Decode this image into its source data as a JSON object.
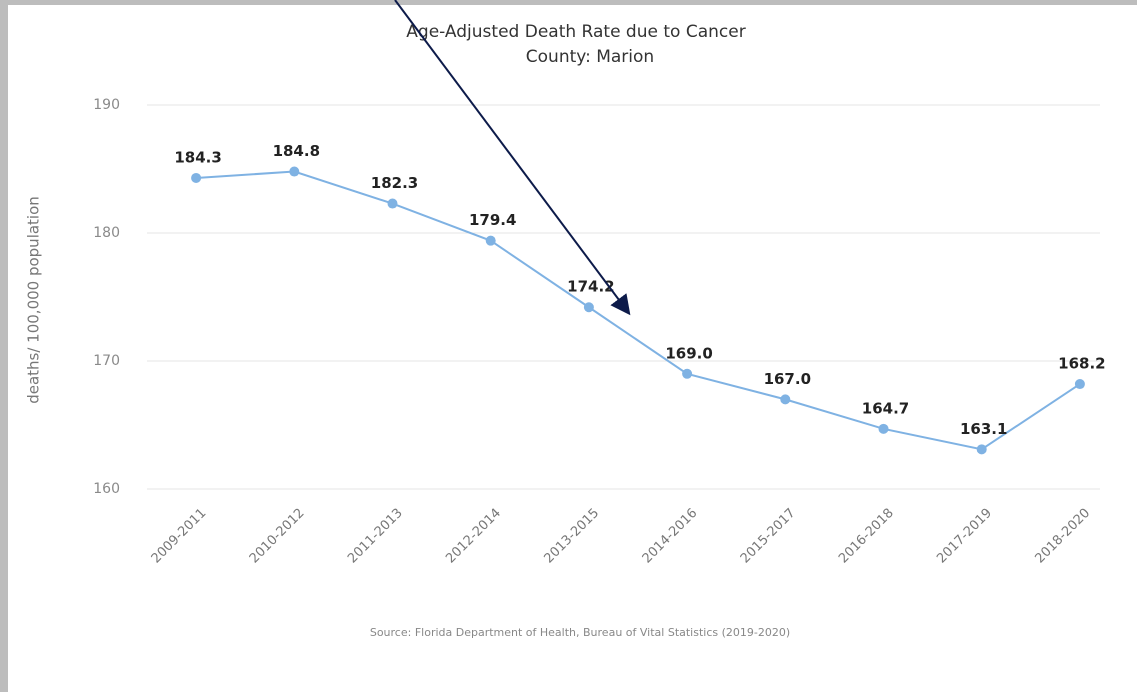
{
  "chart_data": {
    "type": "line",
    "title": "Age-Adjusted Death Rate due to Cancer",
    "subtitle": "County: Marion",
    "y_axis_label": "deaths/ 100,000 population",
    "source": "Source: Florida Department of Health, Bureau of Vital Statistics (2019-2020)",
    "categories": [
      "2009-2011",
      "2010-2012",
      "2011-2013",
      "2012-2014",
      "2013-2015",
      "2014-2016",
      "2015-2017",
      "2016-2018",
      "2017-2019",
      "2018-2020"
    ],
    "series": [
      {
        "color": "#7fb2e3",
        "values": [
          184.3,
          184.8,
          182.3,
          179.4,
          174.2,
          169,
          167,
          164.7,
          163.1,
          168.2
        ],
        "value_labels": [
          "184.3",
          "184.8",
          "182.3",
          "179.4",
          "174.2",
          "169.0",
          "167.0",
          "164.7",
          "163.1",
          "168.2"
        ]
      }
    ],
    "ylim": [
      160,
      190
    ],
    "yticks": [
      160,
      170,
      180,
      190
    ],
    "grid": true
  }
}
